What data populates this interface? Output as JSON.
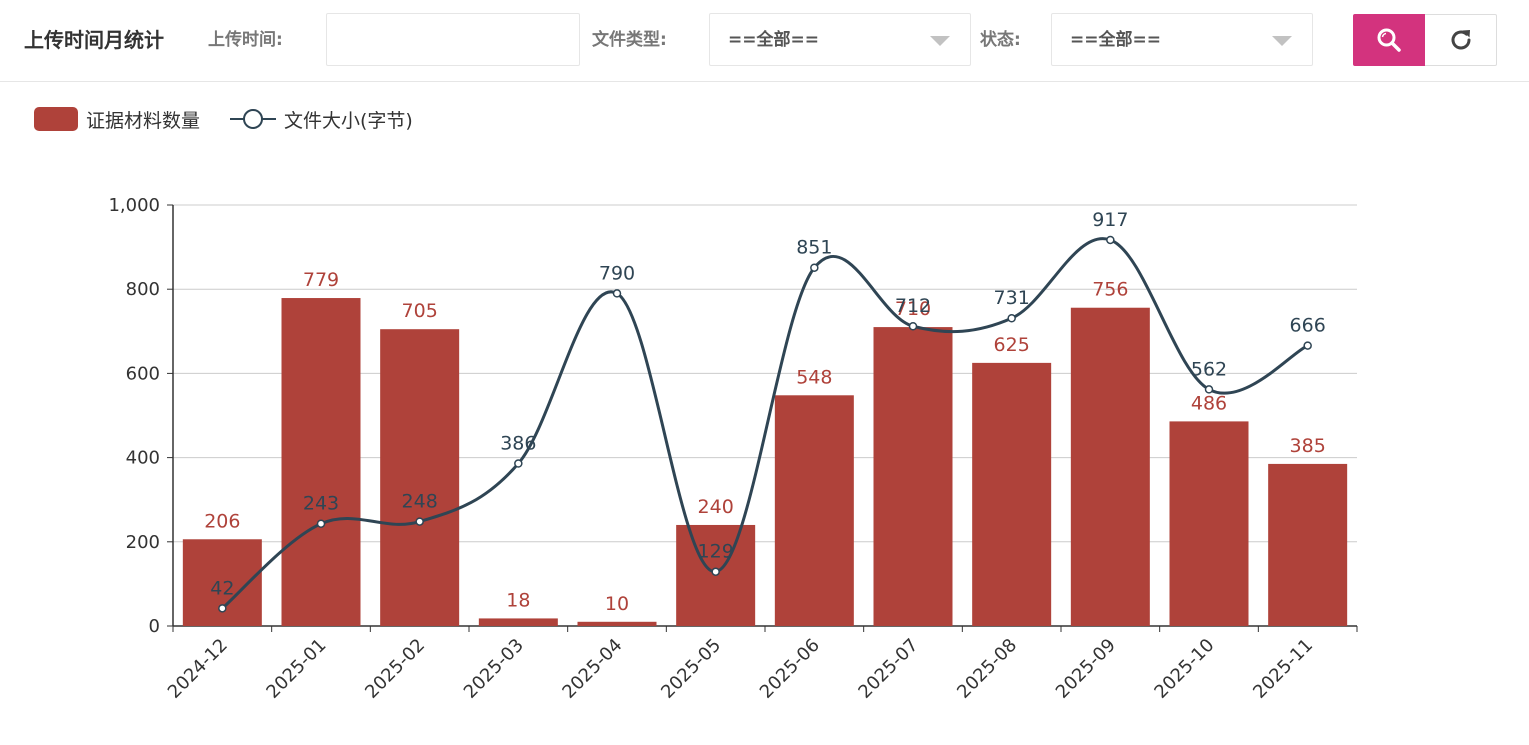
{
  "toolbar": {
    "title": "上传时间月统计",
    "upload_time_label": "上传时间:",
    "upload_time_value": "",
    "file_type_label": "文件类型:",
    "file_type_selected": "==全部==",
    "status_label": "状态:",
    "status_selected": "==全部==",
    "search_icon": "search-icon",
    "refresh_icon": "refresh-icon",
    "accent_color": "#d3337e"
  },
  "legend": {
    "bar_label": "证据材料数量",
    "line_label": "文件大小(字节)"
  },
  "chart_data": {
    "type": "bar",
    "categories": [
      "2024-12",
      "2025-01",
      "2025-02",
      "2025-03",
      "2025-04",
      "2025-05",
      "2025-06",
      "2025-07",
      "2025-08",
      "2025-09",
      "2025-10",
      "2025-11"
    ],
    "series": [
      {
        "name": "证据材料数量",
        "type": "bar",
        "color": "#af423a",
        "values": [
          206,
          779,
          705,
          18,
          10,
          240,
          548,
          710,
          625,
          756,
          486,
          385
        ]
      },
      {
        "name": "文件大小(字节)",
        "type": "line",
        "smooth": true,
        "color": "#2f4554",
        "values": [
          42,
          243,
          248,
          386,
          790,
          129,
          851,
          712,
          731,
          917,
          562,
          666
        ]
      }
    ],
    "ylim": [
      0,
      1000
    ],
    "yticks": [
      0,
      200,
      400,
      600,
      800,
      1000
    ],
    "ytick_labels": [
      "0",
      "200",
      "400",
      "600",
      "800",
      "1,000"
    ],
    "grid": true,
    "legend_position": "top-left",
    "xlabel": "",
    "ylabel": ""
  }
}
